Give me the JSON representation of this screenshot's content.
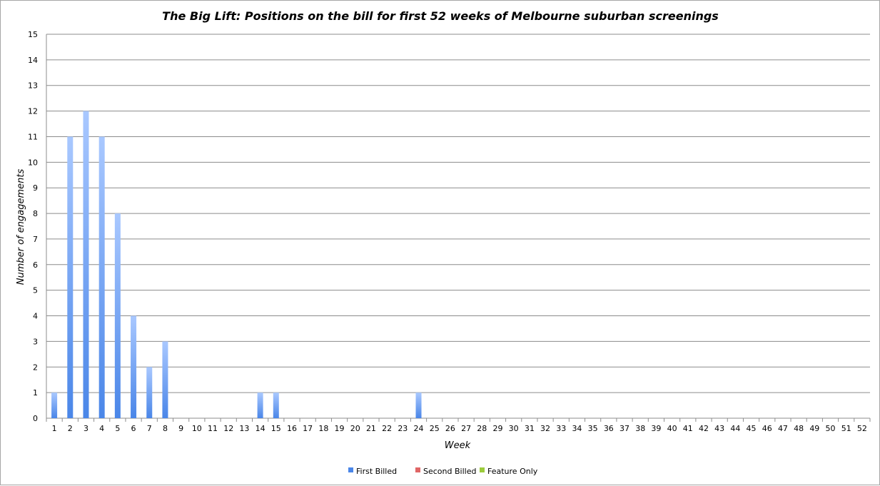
{
  "chart_data": {
    "type": "bar",
    "title": "The Big Lift: Positions on the bill for first 52 weeks of Melbourne suburban screenings",
    "xlabel": "Week",
    "ylabel": "Number of engagements",
    "ylim": [
      0,
      15
    ],
    "y_ticks": [
      "0",
      "1",
      "2",
      "3",
      "4",
      "5",
      "6",
      "7",
      "8",
      "9",
      "10",
      "11",
      "12",
      "13",
      "14",
      "15"
    ],
    "grid": "horizontal",
    "legend_position": "bottom",
    "stacked": true,
    "categories": [
      "1",
      "2",
      "3",
      "4",
      "5",
      "6",
      "7",
      "8",
      "9",
      "10",
      "11",
      "12",
      "13",
      "14",
      "15",
      "16",
      "17",
      "18",
      "19",
      "20",
      "21",
      "22",
      "23",
      "24",
      "25",
      "26",
      "27",
      "28",
      "29",
      "30",
      "31",
      "32",
      "33",
      "34",
      "35",
      "36",
      "37",
      "38",
      "39",
      "40",
      "41",
      "42",
      "43",
      "44",
      "45",
      "46",
      "47",
      "48",
      "49",
      "50",
      "51",
      "52"
    ],
    "series": [
      {
        "name": "First Billed",
        "color": "#4a86e8",
        "color_light": "#a9c8ff",
        "values": [
          1,
          11,
          12,
          11,
          8,
          4,
          2,
          3,
          0,
          0,
          0,
          0,
          0,
          1,
          1,
          0,
          0,
          0,
          0,
          0,
          0,
          0,
          0,
          1,
          0,
          0,
          0,
          0,
          0,
          0,
          0,
          0,
          0,
          0,
          0,
          0,
          0,
          0,
          0,
          0,
          0,
          0,
          0,
          0,
          0,
          0,
          0,
          0,
          0,
          0,
          0,
          0
        ]
      },
      {
        "name": "Second Billed",
        "color": "#e06666",
        "values": [
          0,
          0,
          0,
          0,
          0,
          0,
          0,
          0,
          0,
          0,
          0,
          0,
          0,
          0,
          0,
          0,
          0,
          0,
          0,
          0,
          0,
          0,
          0,
          0,
          0,
          0,
          0,
          0,
          0,
          0,
          0,
          0,
          0,
          0,
          0,
          0,
          0,
          0,
          0,
          0,
          0,
          0,
          0,
          0,
          0,
          0,
          0,
          0,
          0,
          0,
          0,
          0
        ]
      },
      {
        "name": "Feature Only",
        "color": "#9ccc3c",
        "values": [
          0,
          0,
          0,
          0,
          0,
          0,
          0,
          0,
          0,
          0,
          0,
          0,
          0,
          0,
          0,
          0,
          0,
          0,
          0,
          0,
          0,
          0,
          0,
          0,
          0,
          0,
          0,
          0,
          0,
          0,
          0,
          0,
          0,
          0,
          0,
          0,
          0,
          0,
          0,
          0,
          0,
          0,
          0,
          0,
          0,
          0,
          0,
          0,
          0,
          0,
          0,
          0
        ]
      }
    ]
  }
}
